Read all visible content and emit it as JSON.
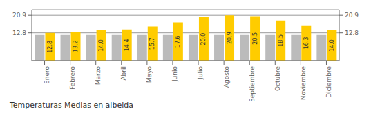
{
  "chart_data": {
    "type": "bar",
    "title": "Temperaturas Medias en albelda",
    "categories": [
      "Enero",
      "Febrero",
      "Marzo",
      "Abril",
      "Mayo",
      "Junio",
      "Julio",
      "Agosto",
      "Septiembre",
      "Octubre",
      "Noviembre",
      "Diciembre"
    ],
    "series": [
      {
        "color": "#BBBBBB",
        "values": [
          11.8,
          11.8,
          11.8,
          11.8,
          11.8,
          11.8,
          11.8,
          11.8,
          11.8,
          11.8,
          11.8,
          11.8
        ]
      },
      {
        "color": "#FFCC00",
        "values": [
          12.8,
          13.2,
          14.0,
          14.4,
          15.7,
          17.6,
          20.0,
          20.9,
          20.5,
          18.5,
          16.3,
          14.0
        ],
        "value_labels": [
          "12.8",
          "13.2",
          "14.0",
          "14.4",
          "15.7",
          "17.6",
          "20.0",
          "20.9",
          "20.5",
          "18.5",
          "16.3",
          "14.0"
        ],
        "data_labels": true
      }
    ],
    "ylim": [
      0,
      23.5
    ],
    "yticks": [
      12.8,
      20.9
    ],
    "y2lim": [
      0,
      23.5
    ],
    "y2ticks": [
      12.8,
      20.9
    ],
    "grid": true
  }
}
